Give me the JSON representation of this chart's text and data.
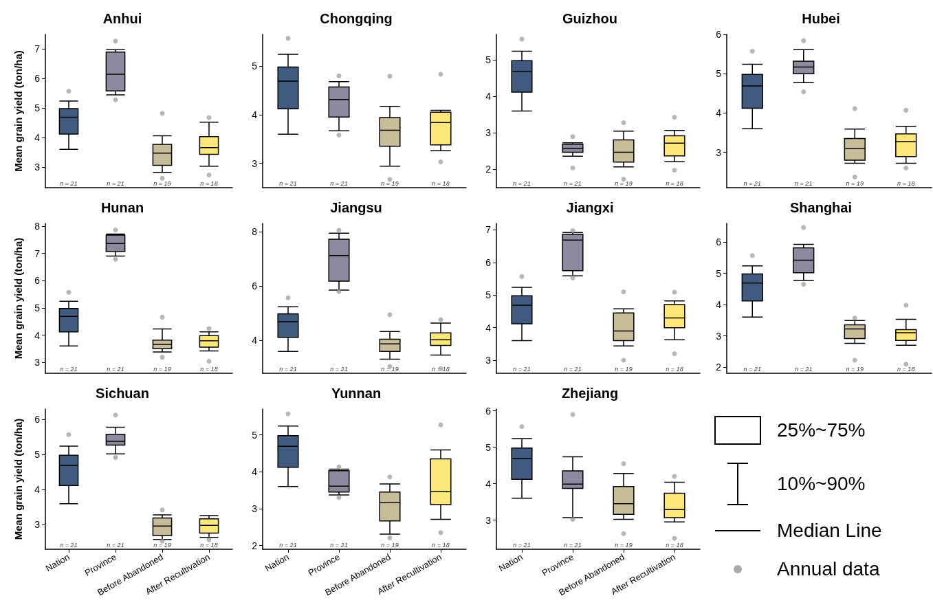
{
  "chart_data": [
    {
      "type": "box",
      "title": "Anhui",
      "ylabel": "Mean grain yield (ton/ha)",
      "tick_labels": "y",
      "categories": [
        null,
        null,
        null,
        null
      ],
      "colors": [
        "#405a80",
        "#8c8a9e",
        "#c8bd98",
        "#fde67a"
      ],
      "ylim": [
        2.3,
        7.5
      ],
      "yticks": [
        3,
        4,
        5,
        6,
        7
      ],
      "boxes": [
        {
          "low": 3.6,
          "q1": 4.12,
          "median": 4.69,
          "q3": 4.98,
          "high": 5.24,
          "outliers": [
            5.57
          ]
        },
        {
          "low": 5.45,
          "q1": 5.58,
          "median": 6.15,
          "q3": 6.9,
          "high": 6.98,
          "outliers": [
            7.27,
            5.28
          ]
        },
        {
          "low": 2.82,
          "q1": 3.06,
          "median": 3.47,
          "q3": 3.77,
          "high": 4.06,
          "outliers": [
            4.82,
            2.62
          ]
        },
        {
          "low": 3.03,
          "q1": 3.43,
          "median": 3.66,
          "q3": 4.03,
          "high": 4.52,
          "outliers": [
            4.68,
            2.73
          ]
        }
      ],
      "annotations": [
        "n = 21",
        "n = 21",
        "n = 19",
        "n = 18"
      ]
    },
    {
      "type": "box",
      "title": "Chongqing",
      "tick_labels": "y",
      "categories": [
        null,
        null,
        null,
        null
      ],
      "colors": [
        "#405a80",
        "#8c8a9e",
        "#c8bd98",
        "#fde67a"
      ],
      "ylim": [
        2.5,
        5.65
      ],
      "yticks": [
        3,
        4,
        5
      ],
      "boxes": [
        {
          "low": 3.6,
          "q1": 4.12,
          "median": 4.69,
          "q3": 4.98,
          "high": 5.24,
          "outliers": [
            5.57
          ]
        },
        {
          "low": 3.67,
          "q1": 3.95,
          "median": 4.31,
          "q3": 4.57,
          "high": 4.68,
          "outliers": [
            4.8,
            3.58
          ]
        },
        {
          "low": 2.94,
          "q1": 3.35,
          "median": 3.68,
          "q3": 3.94,
          "high": 4.17,
          "outliers": [
            4.79,
            2.67
          ]
        },
        {
          "low": 3.26,
          "q1": 3.38,
          "median": 3.84,
          "q3": 4.05,
          "high": 4.09,
          "outliers": [
            4.83,
            3.03
          ]
        }
      ],
      "annotations": [
        "n = 21",
        "n = 21",
        "n = 19",
        "n = 18"
      ]
    },
    {
      "type": "box",
      "title": "Guizhou",
      "tick_labels": "y",
      "categories": [
        null,
        null,
        null,
        null
      ],
      "colors": [
        "#405a80",
        "#8c8a9e",
        "#c8bd98",
        "#fde67a"
      ],
      "ylim": [
        1.5,
        5.7
      ],
      "yticks": [
        2,
        3,
        4,
        5
      ],
      "boxes": [
        {
          "low": 3.6,
          "q1": 4.12,
          "median": 4.69,
          "q3": 4.98,
          "high": 5.24,
          "outliers": [
            5.57
          ]
        },
        {
          "low": 2.36,
          "q1": 2.47,
          "median": 2.57,
          "q3": 2.69,
          "high": 2.73,
          "outliers": [
            2.9,
            2.04
          ]
        },
        {
          "low": 2.07,
          "q1": 2.2,
          "median": 2.47,
          "q3": 2.81,
          "high": 3.05,
          "outliers": [
            3.28,
            1.73
          ]
        },
        {
          "low": 2.21,
          "q1": 2.37,
          "median": 2.72,
          "q3": 2.92,
          "high": 3.07,
          "outliers": [
            3.43,
            1.98
          ]
        }
      ],
      "annotations": [
        "n = 21",
        "n = 21",
        "n = 19",
        "n = 18"
      ]
    },
    {
      "type": "box",
      "title": "Hubei",
      "tick_labels": "y",
      "categories": [
        null,
        null,
        null,
        null
      ],
      "colors": [
        "#405a80",
        "#8c8a9e",
        "#c8bd98",
        "#fde67a"
      ],
      "ylim": [
        2.1,
        6
      ],
      "yticks": [
        3,
        4,
        5,
        6
      ],
      "boxes": [
        {
          "low": 3.6,
          "q1": 4.12,
          "median": 4.69,
          "q3": 4.98,
          "high": 5.24,
          "outliers": [
            5.57
          ]
        },
        {
          "low": 4.77,
          "q1": 5.0,
          "median": 5.17,
          "q3": 5.32,
          "high": 5.61,
          "outliers": [
            5.84,
            4.54
          ]
        },
        {
          "low": 2.72,
          "q1": 2.8,
          "median": 3.1,
          "q3": 3.35,
          "high": 3.59,
          "outliers": [
            4.11,
            2.37
          ]
        },
        {
          "low": 2.72,
          "q1": 2.89,
          "median": 3.27,
          "q3": 3.47,
          "high": 3.66,
          "outliers": [
            4.07,
            2.6
          ]
        }
      ],
      "annotations": [
        "n = 21",
        "n = 21",
        "n = 19",
        "n = 18"
      ]
    },
    {
      "type": "box",
      "title": "Hunan",
      "ylabel": "Mean grain yield (ton/ha)",
      "tick_labels": "y",
      "categories": [
        null,
        null,
        null,
        null
      ],
      "colors": [
        "#405a80",
        "#8c8a9e",
        "#c8bd98",
        "#fde67a"
      ],
      "ylim": [
        2.6,
        8.1
      ],
      "yticks": [
        3,
        4,
        5,
        6,
        7,
        8
      ],
      "boxes": [
        {
          "low": 3.6,
          "q1": 4.12,
          "median": 4.69,
          "q3": 4.98,
          "high": 5.24,
          "outliers": [
            5.57
          ]
        },
        {
          "low": 6.9,
          "q1": 7.07,
          "median": 7.36,
          "q3": 7.67,
          "high": 7.71,
          "outliers": [
            7.86,
            6.78
          ]
        },
        {
          "low": 3.38,
          "q1": 3.5,
          "median": 3.66,
          "q3": 3.82,
          "high": 4.23,
          "outliers": [
            4.66,
            3.19
          ]
        },
        {
          "low": 3.42,
          "q1": 3.56,
          "median": 3.79,
          "q3": 3.98,
          "high": 4.12,
          "outliers": [
            4.24,
            3.04
          ]
        }
      ],
      "annotations": [
        "n = 21",
        "n = 21",
        "n = 19",
        "n = 18"
      ]
    },
    {
      "type": "box",
      "title": "Jiangsu",
      "tick_labels": "y",
      "categories": [
        null,
        null,
        null,
        null
      ],
      "colors": [
        "#405a80",
        "#8c8a9e",
        "#c8bd98",
        "#fde67a"
      ],
      "ylim": [
        2.8,
        8.3
      ],
      "yticks": [
        4,
        6,
        8
      ],
      "boxes": [
        {
          "low": 3.6,
          "q1": 4.12,
          "median": 4.69,
          "q3": 4.98,
          "high": 5.24,
          "outliers": [
            5.57
          ]
        },
        {
          "low": 5.85,
          "q1": 6.18,
          "median": 7.12,
          "q3": 7.72,
          "high": 7.94,
          "outliers": [
            8.05,
            5.8
          ]
        },
        {
          "low": 3.32,
          "q1": 3.6,
          "median": 3.88,
          "q3": 4.05,
          "high": 4.33,
          "outliers": [
            4.95,
            3.05
          ]
        },
        {
          "low": 3.47,
          "q1": 3.82,
          "median": 4.03,
          "q3": 4.28,
          "high": 4.64,
          "outliers": [
            4.77,
            2.97
          ]
        }
      ],
      "annotations": [
        "n = 21",
        "n = 21",
        "n = 19",
        "n = 18"
      ]
    },
    {
      "type": "box",
      "title": "Jiangxi",
      "tick_labels": "y",
      "categories": [
        null,
        null,
        null,
        null
      ],
      "colors": [
        "#405a80",
        "#8c8a9e",
        "#c8bd98",
        "#fde67a"
      ],
      "ylim": [
        2.6,
        7.2
      ],
      "yticks": [
        3,
        4,
        5,
        6,
        7
      ],
      "boxes": [
        {
          "low": 3.6,
          "q1": 4.12,
          "median": 4.69,
          "q3": 4.98,
          "high": 5.24,
          "outliers": [
            5.57
          ]
        },
        {
          "low": 5.59,
          "q1": 5.75,
          "median": 6.69,
          "q3": 6.87,
          "high": 6.92,
          "outliers": [
            6.98,
            5.53
          ]
        },
        {
          "low": 3.44,
          "q1": 3.6,
          "median": 3.9,
          "q3": 4.45,
          "high": 4.58,
          "outliers": [
            5.1,
            3.0
          ]
        },
        {
          "low": 3.63,
          "q1": 4.0,
          "median": 4.3,
          "q3": 4.71,
          "high": 4.82,
          "outliers": [
            5.09,
            3.2
          ]
        }
      ],
      "annotations": [
        "n = 21",
        "n = 21",
        "n = 19",
        "n = 18"
      ]
    },
    {
      "type": "box",
      "title": "Shanghai",
      "tick_labels": "y",
      "categories": [
        null,
        null,
        null,
        null
      ],
      "colors": [
        "#405a80",
        "#8c8a9e",
        "#c8bd98",
        "#fde67a"
      ],
      "ylim": [
        1.8,
        6.6
      ],
      "yticks": [
        2,
        3,
        4,
        5,
        6
      ],
      "boxes": [
        {
          "low": 3.6,
          "q1": 4.12,
          "median": 4.69,
          "q3": 4.98,
          "high": 5.24,
          "outliers": [
            5.57
          ]
        },
        {
          "low": 4.77,
          "q1": 5.02,
          "median": 5.42,
          "q3": 5.82,
          "high": 5.93,
          "outliers": [
            6.47,
            4.65
          ]
        },
        {
          "low": 2.76,
          "q1": 2.91,
          "median": 3.22,
          "q3": 3.35,
          "high": 3.49,
          "outliers": [
            3.57,
            2.22
          ]
        },
        {
          "low": 2.7,
          "q1": 2.85,
          "median": 3.1,
          "q3": 3.2,
          "high": 3.53,
          "outliers": [
            3.98,
            2.09
          ]
        }
      ],
      "annotations": [
        "n = 21",
        "n = 21",
        "n = 19",
        "n = 18"
      ]
    },
    {
      "type": "box",
      "title": "Sichuan",
      "ylabel": "Mean grain yield (ton/ha)",
      "categories": [
        "Nation",
        "Province",
        "Before Abandoned",
        "After Recultivation"
      ],
      "colors": [
        "#405a80",
        "#8c8a9e",
        "#c8bd98",
        "#fde67a"
      ],
      "ylim": [
        2.3,
        6.3
      ],
      "yticks": [
        3,
        4,
        5,
        6
      ],
      "boxes": [
        {
          "low": 3.6,
          "q1": 4.12,
          "median": 4.69,
          "q3": 4.98,
          "high": 5.24,
          "outliers": [
            5.57
          ]
        },
        {
          "low": 5.02,
          "q1": 5.27,
          "median": 5.38,
          "q3": 5.58,
          "high": 5.78,
          "outliers": [
            6.13,
            4.92
          ]
        },
        {
          "low": 2.58,
          "q1": 2.69,
          "median": 2.96,
          "q3": 3.19,
          "high": 3.28,
          "outliers": [
            3.42,
            2.53
          ]
        },
        {
          "low": 2.64,
          "q1": 2.76,
          "median": 2.98,
          "q3": 3.17,
          "high": 3.26,
          "outliers": [
            2.57
          ]
        }
      ],
      "annotations": [
        "n = 21",
        "n = 21",
        "n = 19",
        "n = 18"
      ]
    },
    {
      "type": "box",
      "title": "Yunnan",
      "categories": [
        "Nation",
        "Province",
        "Before Abandoned",
        "After Recultivation"
      ],
      "colors": [
        "#405a80",
        "#8c8a9e",
        "#c8bd98",
        "#fde67a"
      ],
      "ylim": [
        1.9,
        5.7
      ],
      "yticks": [
        2,
        3,
        4,
        5
      ],
      "boxes": [
        {
          "low": 3.6,
          "q1": 4.12,
          "median": 4.69,
          "q3": 4.98,
          "high": 5.24,
          "outliers": [
            5.57
          ]
        },
        {
          "low": 3.37,
          "q1": 3.45,
          "median": 3.61,
          "q3": 4.03,
          "high": 4.07,
          "outliers": [
            4.13,
            3.3
          ]
        },
        {
          "low": 2.31,
          "q1": 2.67,
          "median": 3.16,
          "q3": 3.45,
          "high": 3.67,
          "outliers": [
            3.86,
            2.21
          ]
        },
        {
          "low": 2.71,
          "q1": 3.11,
          "median": 3.46,
          "q3": 4.35,
          "high": 4.59,
          "outliers": [
            5.27,
            2.35
          ]
        }
      ],
      "annotations": [
        "n = 21",
        "n = 21",
        "n = 19",
        "n = 18"
      ]
    },
    {
      "type": "box",
      "title": "Zhejiang",
      "categories": [
        "Nation",
        "Province",
        "Before Abandoned",
        "After Recultivation"
      ],
      "colors": [
        "#405a80",
        "#8c8a9e",
        "#c8bd98",
        "#fde67a"
      ],
      "ylim": [
        2.2,
        6.05
      ],
      "yticks": [
        3,
        4,
        5,
        6
      ],
      "boxes": [
        {
          "low": 3.6,
          "q1": 4.12,
          "median": 4.69,
          "q3": 4.98,
          "high": 5.24,
          "outliers": [
            5.57
          ]
        },
        {
          "low": 3.07,
          "q1": 3.87,
          "median": 3.99,
          "q3": 4.35,
          "high": 4.74,
          "outliers": [
            5.9,
            3.02
          ]
        },
        {
          "low": 3.02,
          "q1": 3.16,
          "median": 3.45,
          "q3": 3.92,
          "high": 4.28,
          "outliers": [
            4.55,
            2.63
          ]
        },
        {
          "low": 2.95,
          "q1": 3.07,
          "median": 3.29,
          "q3": 3.74,
          "high": 4.04,
          "outliers": [
            4.2,
            2.5
          ]
        }
      ],
      "annotations": [
        "n = 21",
        "n = 21",
        "n = 19",
        "n = 18"
      ]
    },
    {
      "type": "other",
      "annotations": [
        "25%~75%",
        "10%~90%",
        "Median Line",
        "Annual data"
      ]
    }
  ]
}
